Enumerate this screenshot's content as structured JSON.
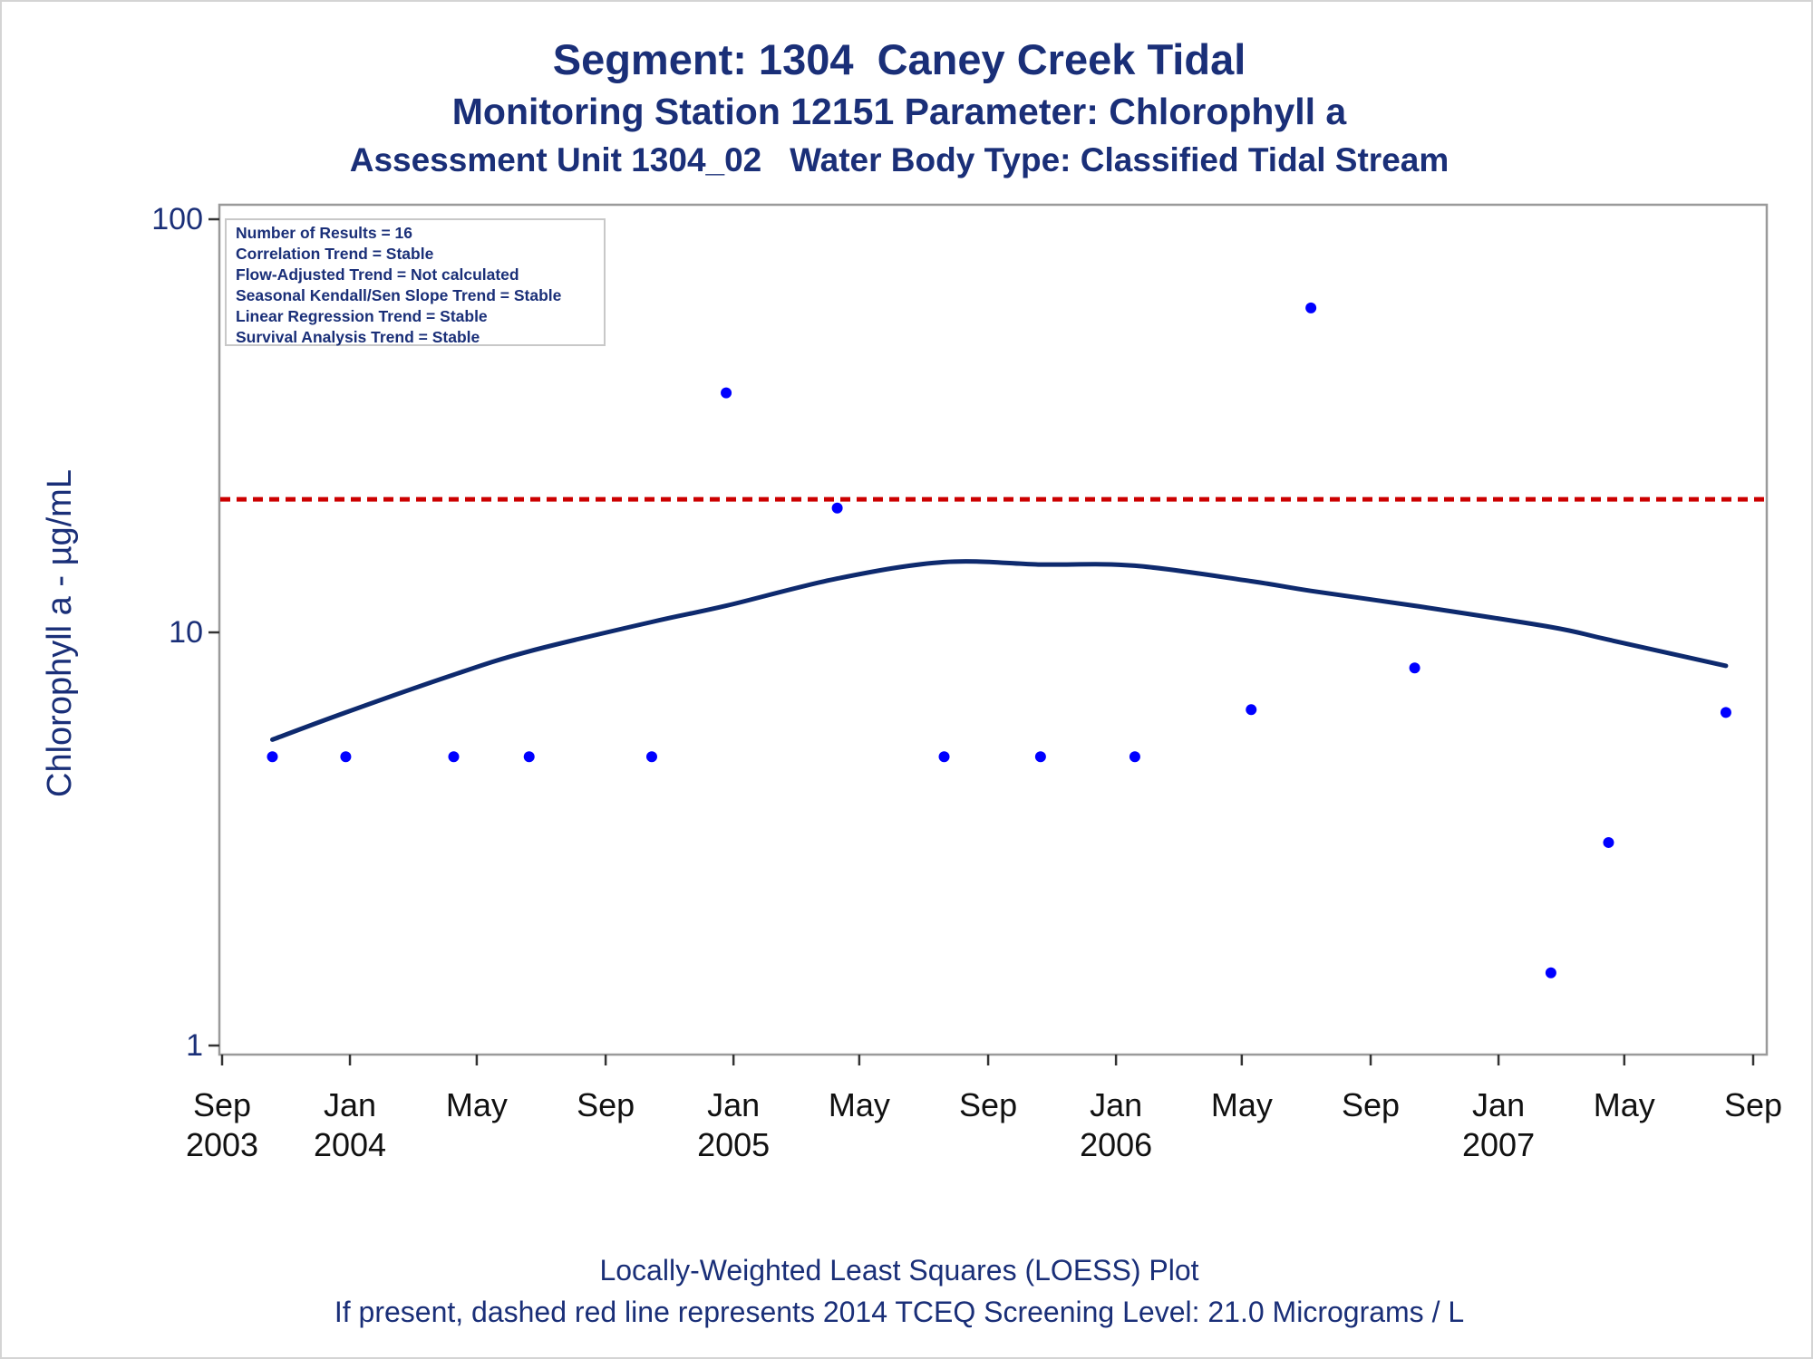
{
  "title": "Segment: 1304  Caney Creek Tidal",
  "subtitle1": "Monitoring Station 12151 Parameter: Chlorophyll a",
  "subtitle2": "Assessment Unit 1304_02   Water Body Type: Classified Tidal Stream",
  "stats": [
    "Number of Results = 16",
    "Correlation Trend = Stable",
    "Flow-Adjusted Trend = Not calculated",
    "Seasonal Kendall/Sen Slope Trend = Stable",
    "Linear Regression Trend = Stable",
    "Survival Analysis Trend = Stable"
  ],
  "footnotes": [
    "Locally-Weighted Least Squares (LOESS) Plot",
    "If present, dashed red line represents 2014 TCEQ Screening Level: 21.0 Micrograms / L"
  ],
  "colors": {
    "text": "#1a2f78",
    "points": "#0000ff",
    "loess": "#0e2a6e",
    "screening": "#cc0000",
    "frame": "#9a9a9a"
  },
  "chart_data": {
    "type": "scatter",
    "ylabel": "Chlorophyll a -  µg/mL",
    "y_scale": "log",
    "ylim": [
      1,
      100
    ],
    "y_ticks": [
      {
        "value": 1,
        "label": "1"
      },
      {
        "value": 10,
        "label": "10"
      },
      {
        "value": 100,
        "label": "100"
      }
    ],
    "xlim": [
      "2003-09-01",
      "2007-09-01"
    ],
    "x_ticks": [
      {
        "date": "2003-09-01",
        "month": "Sep",
        "year": "2003"
      },
      {
        "date": "2004-01-01",
        "month": "Jan",
        "year": "2004"
      },
      {
        "date": "2004-05-01",
        "month": "May",
        "year": ""
      },
      {
        "date": "2004-09-01",
        "month": "Sep",
        "year": ""
      },
      {
        "date": "2005-01-01",
        "month": "Jan",
        "year": "2005"
      },
      {
        "date": "2005-05-01",
        "month": "May",
        "year": ""
      },
      {
        "date": "2005-09-01",
        "month": "Sep",
        "year": ""
      },
      {
        "date": "2006-01-01",
        "month": "Jan",
        "year": "2006"
      },
      {
        "date": "2006-05-01",
        "month": "May",
        "year": ""
      },
      {
        "date": "2006-09-01",
        "month": "Sep",
        "year": ""
      },
      {
        "date": "2007-01-01",
        "month": "Jan",
        "year": "2007"
      },
      {
        "date": "2007-05-01",
        "month": "May",
        "year": ""
      },
      {
        "date": "2007-09-01",
        "month": "Sep",
        "year": ""
      }
    ],
    "reference_line": {
      "value": 21.0,
      "style": "dashed"
    },
    "series": [
      {
        "kind": "points",
        "points": [
          {
            "date": "2003-10-19",
            "value": 5.0
          },
          {
            "date": "2003-12-28",
            "value": 5.0
          },
          {
            "date": "2004-04-09",
            "value": 5.0
          },
          {
            "date": "2004-06-20",
            "value": 5.0
          },
          {
            "date": "2004-10-15",
            "value": 5.0
          },
          {
            "date": "2004-12-25",
            "value": 38.0
          },
          {
            "date": "2005-04-10",
            "value": 20.0
          },
          {
            "date": "2005-07-21",
            "value": 5.0
          },
          {
            "date": "2005-10-21",
            "value": 5.0
          },
          {
            "date": "2006-01-19",
            "value": 5.0
          },
          {
            "date": "2006-05-10",
            "value": 6.5
          },
          {
            "date": "2006-07-06",
            "value": 61.0
          },
          {
            "date": "2006-10-13",
            "value": 8.2
          },
          {
            "date": "2007-02-20",
            "value": 1.5
          },
          {
            "date": "2007-04-16",
            "value": 3.1
          },
          {
            "date": "2007-08-06",
            "value": 6.4
          }
        ]
      },
      {
        "kind": "loess",
        "points": [
          {
            "date": "2003-10-19",
            "value": 5.5
          },
          {
            "date": "2003-12-28",
            "value": 6.4
          },
          {
            "date": "2004-04-09",
            "value": 7.9
          },
          {
            "date": "2004-06-20",
            "value": 9.0
          },
          {
            "date": "2004-10-15",
            "value": 10.6
          },
          {
            "date": "2004-12-25",
            "value": 11.6
          },
          {
            "date": "2005-04-10",
            "value": 13.5
          },
          {
            "date": "2005-07-21",
            "value": 14.8
          },
          {
            "date": "2005-10-21",
            "value": 14.6
          },
          {
            "date": "2006-01-19",
            "value": 14.5
          },
          {
            "date": "2006-05-10",
            "value": 13.3
          },
          {
            "date": "2006-07-06",
            "value": 12.6
          },
          {
            "date": "2006-10-13",
            "value": 11.6
          },
          {
            "date": "2007-02-20",
            "value": 10.3
          },
          {
            "date": "2007-04-16",
            "value": 9.6
          },
          {
            "date": "2007-08-06",
            "value": 8.3
          }
        ]
      }
    ]
  }
}
